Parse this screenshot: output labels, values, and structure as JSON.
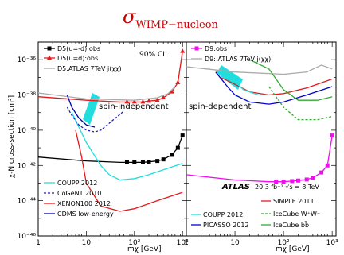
{
  "title_main": "σ",
  "title_sub": "WIMP−nucleon",
  "y_axis_label": "χ-N cross-section [cm²]",
  "chart_data": [
    {
      "type": "line",
      "panel": "spin-independent",
      "xlabel": "mχ [GeV]",
      "ylabel": "χ-N cross-section [cm²]",
      "xscale": "log",
      "yscale": "log",
      "xlim": [
        1,
        1200
      ],
      "ylim": [
        1e-46,
        1e-35
      ],
      "x_ticks": [
        "1",
        "10",
        "10²",
        "10³"
      ],
      "y_ticks": [
        "10⁻⁴⁶",
        "10⁻⁴⁴",
        "10⁻⁴²",
        "10⁻⁴⁰",
        "10⁻³⁸",
        "10⁻³⁶"
      ],
      "annotations": [
        "90% CL",
        "spin-independent"
      ],
      "series": [
        {
          "name": "D5(u=-d):obs",
          "color": "#000000",
          "marker": "square",
          "x": [
            1,
            10,
            50,
            70,
            100,
            150,
            200,
            300,
            400,
            600,
            800,
            1000
          ],
          "y": [
            3e-42,
            1.8e-42,
            1.5e-42,
            1.5e-42,
            1.5e-42,
            1.5e-42,
            1.6e-42,
            1.8e-42,
            2.2e-42,
            4e-42,
            1e-41,
            5e-41
          ]
        },
        {
          "name": "D5(u=d):obs",
          "color": "#e41a1c",
          "marker": "triangle",
          "x": [
            1,
            10,
            50,
            70,
            100,
            150,
            200,
            300,
            400,
            600,
            800,
            1000
          ],
          "y": [
            8e-39,
            5e-39,
            4e-39,
            4e-39,
            4e-39,
            4e-39,
            4.5e-39,
            5e-39,
            7e-39,
            1.5e-38,
            5e-38,
            3e-36
          ]
        },
        {
          "name": "D5:ATLAS 7TeV j(χχ)",
          "color": "#aaaaaa",
          "marker": "none",
          "x": [
            1,
            10,
            100,
            300,
            500,
            700
          ],
          "y": [
            1.3e-38,
            6e-39,
            5e-39,
            7e-39,
            1.2e-38,
            3e-38
          ]
        },
        {
          "name": "COUPP 2012",
          "color": "#22dddd",
          "marker": "none",
          "x": [
            5,
            10,
            20,
            30,
            50,
            100,
            200,
            500,
            1000
          ],
          "y": [
            1e-39,
            2e-41,
            1e-42,
            3e-43,
            1.5e-43,
            1.8e-43,
            3e-43,
            7e-43,
            1.3e-42
          ]
        },
        {
          "name": "CoGeNT 2010",
          "color": "#2222bb",
          "marker": "none",
          "x": [
            4,
            5,
            7,
            10,
            15,
            20,
            30,
            60
          ],
          "y": [
            2e-39,
            7e-40,
            2e-40,
            1e-40,
            8e-41,
            1e-40,
            2.5e-40,
            1.2e-39
          ]
        },
        {
          "name": "XENON100 2012",
          "color": "#e41a1c",
          "marker": "none",
          "x": [
            6,
            8,
            10,
            20,
            50,
            100,
            300,
            1000
          ],
          "y": [
            1e-40,
            3e-42,
            1e-43,
            5e-45,
            2.5e-45,
            3.5e-45,
            1e-44,
            3e-44
          ]
        },
        {
          "name": "CDMS low-energy",
          "color": "#0000aa",
          "marker": "none",
          "x": [
            4,
            5,
            7,
            10,
            15
          ],
          "y": [
            1e-38,
            2e-39,
            5e-40,
            2e-40,
            1.5e-40
          ]
        }
      ]
    },
    {
      "type": "line",
      "panel": "spin-dependent",
      "xlabel": "mχ [GeV]",
      "xscale": "log",
      "yscale": "log",
      "xlim": [
        1,
        1200
      ],
      "ylim": [
        1e-46,
        1e-35
      ],
      "x_ticks": [
        "1",
        "10",
        "10²",
        "10³"
      ],
      "annotations": [
        "spin-dependent",
        "ATLAS",
        "20.3 fb⁻¹  √s = 8 TeV"
      ],
      "series": [
        {
          "name": "D9:obs",
          "color": "#ee11ee",
          "marker": "square",
          "x": [
            1,
            10,
            50,
            70,
            100,
            150,
            200,
            300,
            400,
            600,
            800,
            1000
          ],
          "y": [
            3e-43,
            1.5e-43,
            1.2e-43,
            1.2e-43,
            1.2e-43,
            1.3e-43,
            1.4e-43,
            1.6e-43,
            2e-43,
            4e-43,
            1e-42,
            5e-41
          ]
        },
        {
          "name": "D9: ATLAS 7TeV j(χχ)",
          "color": "#aaaaaa",
          "marker": "none",
          "x": [
            1,
            10,
            100,
            300,
            600,
            1000
          ],
          "y": [
            4e-37,
            2e-37,
            1.5e-37,
            2e-37,
            5e-37,
            3e-37
          ]
        },
        {
          "name": "SIMPLE 2011",
          "color": "#e41a1c",
          "marker": "none",
          "x": [
            5,
            10,
            20,
            50,
            100,
            300,
            1000
          ],
          "y": [
            1e-37,
            4e-38,
            1.5e-38,
            1e-38,
            1.2e-38,
            2.5e-38,
            8e-38
          ]
        },
        {
          "name": "COUPP 2012",
          "color": "#22dddd",
          "marker": "none",
          "x": [
            8,
            15,
            30,
            50
          ],
          "y": [
            1e-37,
            2e-38,
            1e-38,
            1e-38
          ]
        },
        {
          "name": "PICASSO 2012",
          "color": "#0000cc",
          "marker": "none",
          "x": [
            4,
            7,
            10,
            20,
            50,
            100,
            300,
            1000
          ],
          "y": [
            2e-37,
            3e-38,
            1e-38,
            4e-39,
            3e-39,
            4e-39,
            1e-38,
            3e-38
          ]
        },
        {
          "name": "IceCube W⁺W⁻",
          "color": "#33aa33",
          "marker": "dashed",
          "x": [
            50,
            100,
            200,
            500,
            1000
          ],
          "y": [
            3e-38,
            2e-39,
            4e-40,
            4e-40,
            6e-40
          ]
        },
        {
          "name": "IceCube bb̄",
          "color": "#33aa33",
          "marker": "none",
          "x": [
            20,
            50,
            100,
            200,
            500,
            1000
          ],
          "y": [
            1e-36,
            3e-37,
            2e-38,
            5e-39,
            5e-39,
            8e-39
          ]
        }
      ]
    }
  ]
}
